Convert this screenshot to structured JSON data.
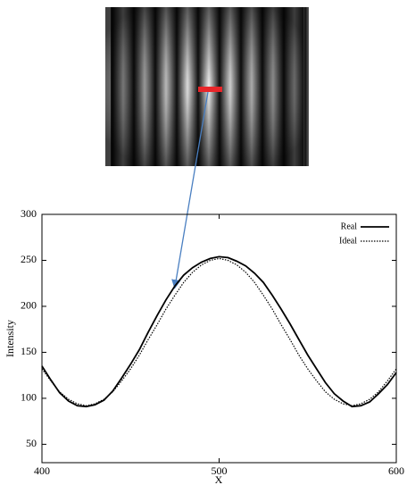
{
  "chart_data": {
    "type": "line",
    "xlabel": "X",
    "ylabel": "Intensity",
    "x": [
      400,
      405,
      410,
      415,
      420,
      425,
      430,
      435,
      440,
      445,
      450,
      455,
      460,
      465,
      470,
      475,
      480,
      485,
      490,
      495,
      500,
      505,
      510,
      515,
      520,
      525,
      530,
      535,
      540,
      545,
      550,
      555,
      560,
      565,
      570,
      575,
      580,
      585,
      590,
      595,
      600
    ],
    "series": [
      {
        "name": "Real",
        "color": "#000000",
        "dash": "solid",
        "values": [
          135,
          120,
          106,
          97,
          92,
          91,
          93,
          98,
          108,
          122,
          137,
          153,
          172,
          190,
          207,
          222,
          234,
          242,
          248,
          252,
          254,
          253,
          249,
          244,
          236,
          226,
          212,
          197,
          181,
          164,
          147,
          132,
          117,
          105,
          97,
          91,
          92,
          96,
          105,
          115,
          128
        ]
      },
      {
        "name": "Ideal",
        "color": "#000000",
        "dash": "dotted",
        "values": [
          132,
          119,
          107,
          99,
          94,
          92,
          94,
          99,
          107,
          119,
          132,
          147,
          164,
          180,
          197,
          212,
          226,
          237,
          245,
          250,
          252,
          250,
          245,
          237,
          226,
          212,
          197,
          180,
          164,
          147,
          132,
          119,
          107,
          99,
          94,
          92,
          94,
          99,
          107,
          119,
          132
        ]
      }
    ],
    "xlim": [
      400,
      600
    ],
    "xticks": [
      400,
      500,
      600
    ],
    "ylim": [
      30,
      300
    ],
    "yticks": [
      50,
      100,
      150,
      200,
      250,
      300
    ],
    "legend": "upper right"
  }
}
